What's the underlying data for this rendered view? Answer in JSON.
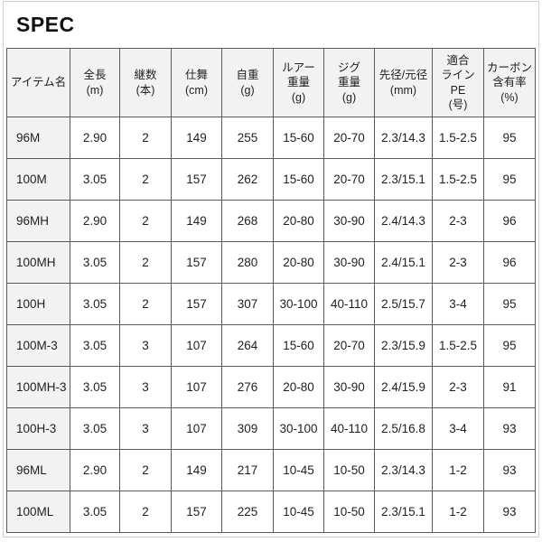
{
  "page": {
    "title": "SPEC"
  },
  "colors": {
    "table_border": "#5a5a5a",
    "shaded_bg": "#f2f2f2",
    "page_border": "#cccccc",
    "text": "#1f1f1f"
  },
  "table": {
    "columns": [
      {
        "id": "item",
        "lines": [
          "アイテム名"
        ]
      },
      {
        "id": "len",
        "lines": [
          "全長",
          "(m)"
        ]
      },
      {
        "id": "pcs",
        "lines": [
          "継数",
          "(本)"
        ]
      },
      {
        "id": "close",
        "lines": [
          "仕舞",
          "(cm)"
        ]
      },
      {
        "id": "wt",
        "lines": [
          "自重",
          "(g)"
        ]
      },
      {
        "id": "lure",
        "lines": [
          "ルアー",
          "重量",
          "(g)"
        ]
      },
      {
        "id": "jig",
        "lines": [
          "ジグ",
          "重量",
          "(g)"
        ]
      },
      {
        "id": "dia",
        "lines": [
          "先径/元径",
          "(mm)"
        ]
      },
      {
        "id": "line",
        "lines": [
          "適合",
          "ラインPE",
          "(号)"
        ]
      },
      {
        "id": "carb",
        "lines": [
          "カーボン",
          "含有率",
          "(%)"
        ]
      }
    ],
    "rows": [
      {
        "item": "96M",
        "values": [
          "2.90",
          "2",
          "149",
          "255",
          "15-60",
          "20-70",
          "2.3/14.3",
          "1.5-2.5",
          "95"
        ]
      },
      {
        "item": "100M",
        "values": [
          "3.05",
          "2",
          "157",
          "262",
          "15-60",
          "20-70",
          "2.3/15.1",
          "1.5-2.5",
          "95"
        ]
      },
      {
        "item": "96MH",
        "values": [
          "2.90",
          "2",
          "149",
          "268",
          "20-80",
          "30-90",
          "2.4/14.3",
          "2-3",
          "96"
        ]
      },
      {
        "item": "100MH",
        "values": [
          "3.05",
          "2",
          "157",
          "280",
          "20-80",
          "30-90",
          "2.4/15.1",
          "2-3",
          "96"
        ]
      },
      {
        "item": "100H",
        "values": [
          "3.05",
          "2",
          "157",
          "307",
          "30-100",
          "40-110",
          "2.5/15.7",
          "3-4",
          "95"
        ]
      },
      {
        "item": "100M-3",
        "values": [
          "3.05",
          "3",
          "107",
          "264",
          "15-60",
          "20-70",
          "2.3/15.9",
          "1.5-2.5",
          "95"
        ]
      },
      {
        "item": "100MH-3",
        "values": [
          "3.05",
          "3",
          "107",
          "276",
          "20-80",
          "30-90",
          "2.4/15.9",
          "2-3",
          "91"
        ]
      },
      {
        "item": "100H-3",
        "values": [
          "3.05",
          "3",
          "107",
          "309",
          "30-100",
          "40-110",
          "2.5/16.8",
          "3-4",
          "93"
        ]
      },
      {
        "item": "96ML",
        "values": [
          "2.90",
          "2",
          "149",
          "217",
          "10-45",
          "10-50",
          "2.3/14.3",
          "1-2",
          "93"
        ]
      },
      {
        "item": "100ML",
        "values": [
          "3.05",
          "2",
          "157",
          "225",
          "10-45",
          "10-50",
          "2.3/15.1",
          "1-2",
          "93"
        ]
      }
    ]
  }
}
